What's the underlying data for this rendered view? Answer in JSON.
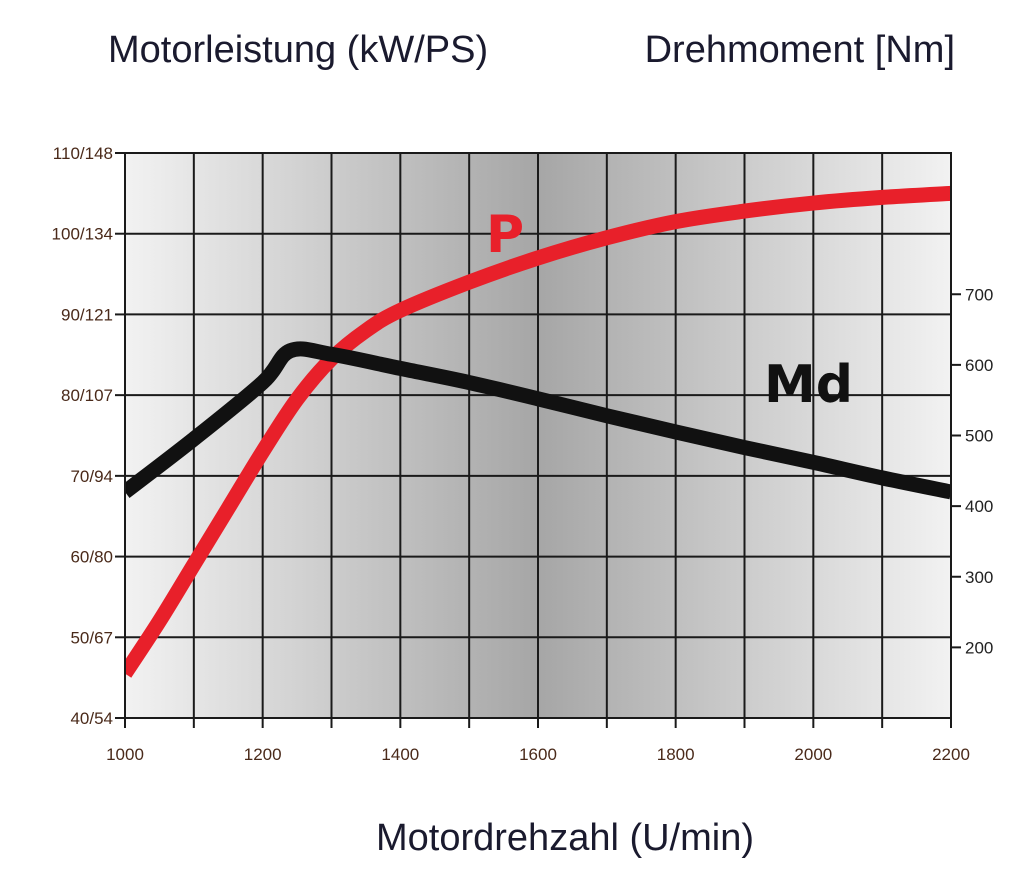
{
  "chart_data": {
    "type": "line",
    "title_left": "Motorleistung (kW/PS)",
    "title_right": "Drehmoment [Nm]",
    "xlabel": "Motordrehzahl (U/min)",
    "x_ticks": [
      "1000",
      "1200",
      "1400",
      "1600",
      "1800",
      "2000",
      "2200"
    ],
    "xlim": [
      1000,
      2200
    ],
    "y_left_ticks": [
      "40/54",
      "50/67",
      "60/80",
      "70/94",
      "80/107",
      "90/121",
      "100/134",
      "110/148"
    ],
    "y_left_values": [
      40,
      50,
      60,
      70,
      80,
      90,
      100,
      110
    ],
    "ylim_left": [
      40,
      110
    ],
    "y_right_ticks": [
      "200",
      "300",
      "400",
      "500",
      "600",
      "700"
    ],
    "y_right_values": [
      200,
      300,
      400,
      500,
      600,
      700
    ],
    "ylim_right": [
      100,
      900
    ],
    "grid": true,
    "colors": {
      "power": "#e8202a",
      "torque": "#111111"
    },
    "series": [
      {
        "name": "P",
        "axis": "left",
        "x": [
          1000,
          1050,
          1100,
          1150,
          1200,
          1250,
          1300,
          1350,
          1400,
          1500,
          1600,
          1700,
          1800,
          1900,
          2000,
          2100,
          2200
        ],
        "values": [
          45.5,
          52,
          59,
          66,
          73,
          79.5,
          84.5,
          88,
          90.5,
          94,
          97,
          99.5,
          101.5,
          102.8,
          103.8,
          104.5,
          105
        ]
      },
      {
        "name": "Md",
        "axis": "right",
        "x": [
          1000,
          1100,
          1200,
          1240,
          1300,
          1400,
          1500,
          1600,
          1700,
          1800,
          1900,
          2000,
          2100,
          2200
        ],
        "values": [
          420,
          495,
          575,
          620,
          615,
          595,
          575,
          552,
          528,
          505,
          483,
          462,
          440,
          420
        ]
      }
    ]
  }
}
